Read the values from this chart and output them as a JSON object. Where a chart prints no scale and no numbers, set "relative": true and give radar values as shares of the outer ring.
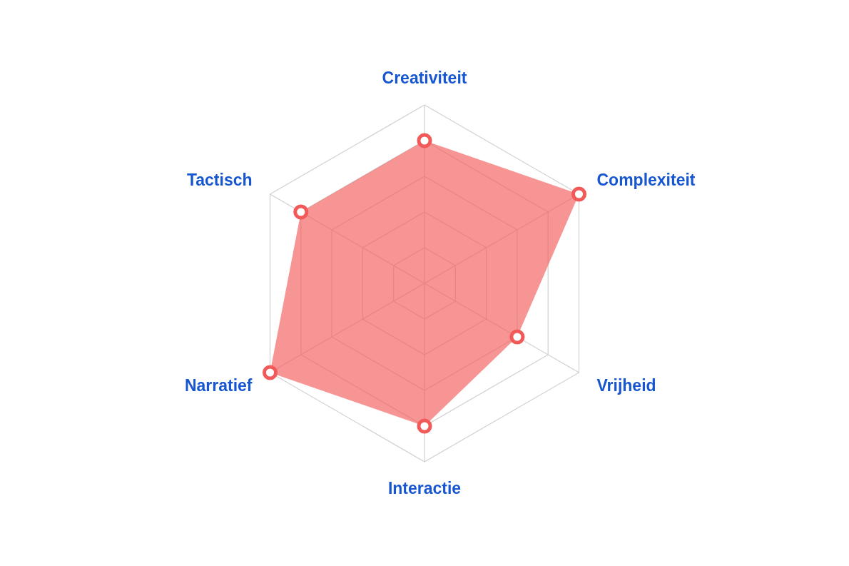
{
  "chart_data": {
    "type": "radar",
    "relative": true,
    "categories": [
      "Creativiteit",
      "Complexiteit",
      "Vrijheid",
      "Interactie",
      "Narratief",
      "Tactisch"
    ],
    "series": [
      {
        "color": "#f25a5a",
        "values": [
          0.8,
          1.0,
          0.6,
          0.8,
          1.0,
          0.8
        ]
      }
    ],
    "grid": true,
    "marker": "circle"
  }
}
